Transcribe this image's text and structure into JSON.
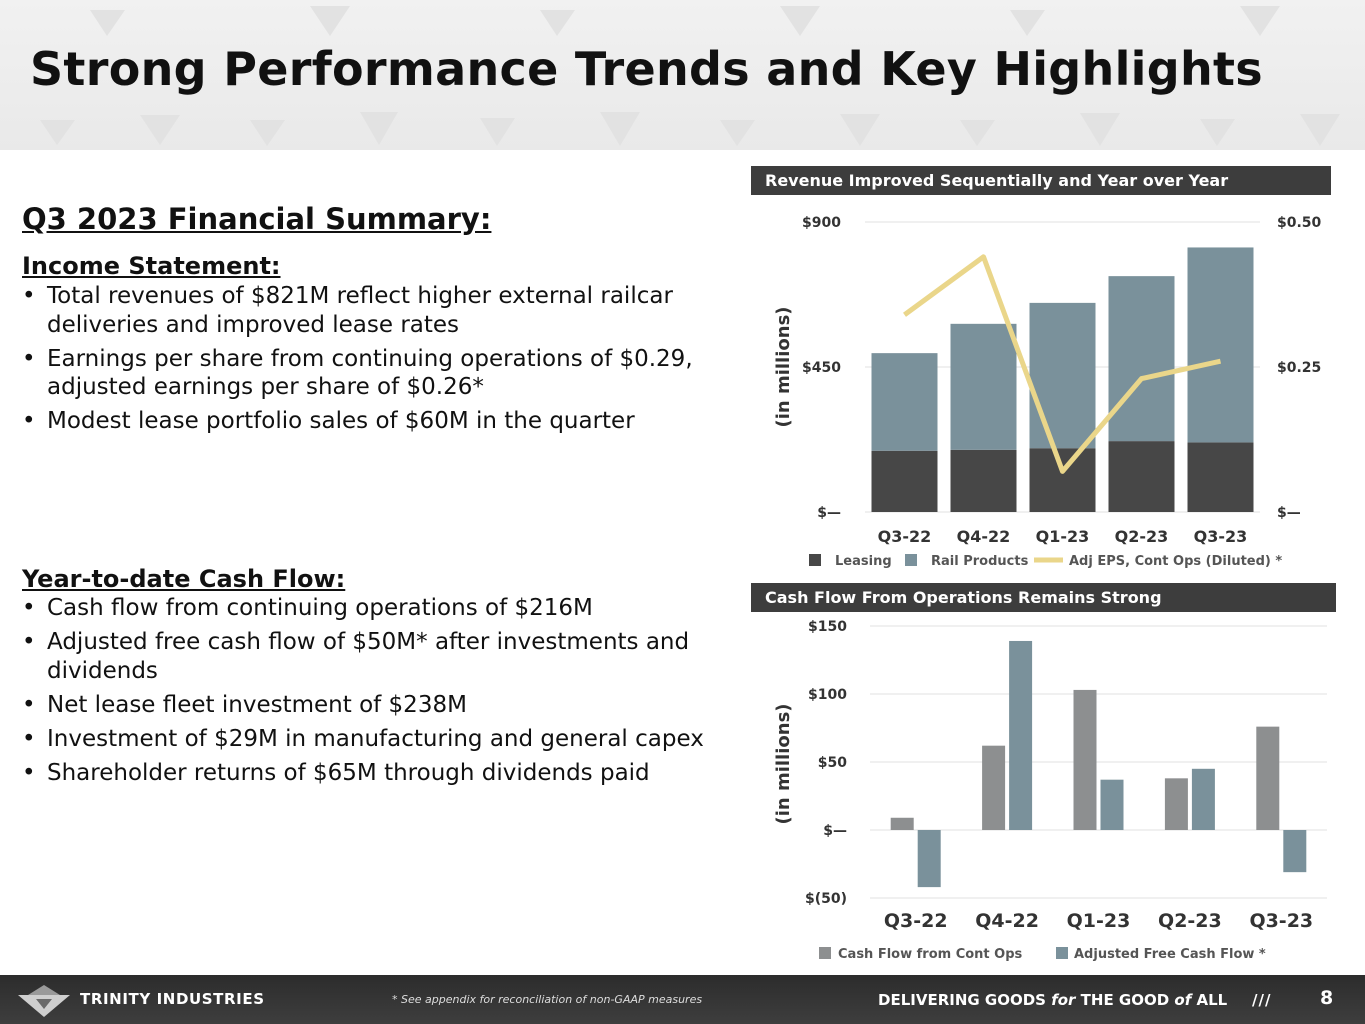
{
  "title": "Strong Performance Trends and Key Highlights",
  "summary_title": "Q3 2023 Financial Summary:",
  "income": {
    "heading": "Income Statement:",
    "bullets": [
      "Total revenues of $821M reflect higher external railcar deliveries and improved lease rates",
      "Earnings per share from continuing operations of $0.29, adjusted earnings per share of $0.26*",
      "Modest lease portfolio sales of $60M in the quarter"
    ]
  },
  "cashflow": {
    "heading": "Year-to-date Cash Flow:",
    "bullets": [
      "Cash flow from continuing operations of $216M",
      "Adjusted free cash flow of $50M* after investments and dividends",
      "Net lease fleet investment of $238M",
      "Investment of $29M in manufacturing and general capex",
      "Shareholder returns of $65M through dividends paid"
    ]
  },
  "colors": {
    "leasing": "#474747",
    "rail": "#7a919b",
    "eps_line": "#ead68a",
    "cfo": "#8d8f90",
    "afcf": "#7a919b",
    "banner": "#3d3d3d"
  },
  "chart_data": [
    {
      "type": "bar",
      "stacked": true,
      "title": "Revenue Improved Sequentially and Year over Year",
      "ylabel": "(in millions)",
      "categories": [
        "Q3-22",
        "Q4-22",
        "Q1-23",
        "Q2-23",
        "Q3-23"
      ],
      "series": [
        {
          "name": "Leasing",
          "values": [
            190,
            193,
            198,
            220,
            216
          ]
        },
        {
          "name": "Rail Products",
          "values": [
            303,
            391,
            451,
            512,
            605
          ]
        }
      ],
      "line_series": {
        "name": "Adj EPS, Cont Ops (Diluted) *",
        "axis": "right",
        "values": [
          0.34,
          0.44,
          0.07,
          0.23,
          0.26
        ]
      },
      "ylim": [
        0,
        900
      ],
      "yticks": [
        {
          "v": 0,
          "label": "$—"
        },
        {
          "v": 450,
          "label": "$450"
        },
        {
          "v": 900,
          "label": "$900"
        }
      ],
      "y2lim": [
        0,
        0.5
      ],
      "y2ticks": [
        {
          "v": 0,
          "label": "$—"
        },
        {
          "v": 0.25,
          "label": "$0.25"
        },
        {
          "v": 0.5,
          "label": "$0.50"
        }
      ],
      "legend": [
        "Leasing",
        "Rail Products",
        "Adj EPS, Cont Ops (Diluted) *"
      ]
    },
    {
      "type": "bar",
      "title": "Cash Flow From Operations Remains Strong",
      "ylabel": "(in millions)",
      "categories": [
        "Q3-22",
        "Q4-22",
        "Q1-23",
        "Q2-23",
        "Q3-23"
      ],
      "series": [
        {
          "name": "Cash Flow from Cont Ops",
          "values": [
            9,
            62,
            103,
            38,
            76
          ]
        },
        {
          "name": "Adjusted Free Cash Flow *",
          "values": [
            -42,
            139,
            37,
            45,
            -31
          ]
        }
      ],
      "ylim": [
        -50,
        150
      ],
      "yticks": [
        {
          "v": -50,
          "label": "$(50)"
        },
        {
          "v": 0,
          "label": "$—"
        },
        {
          "v": 50,
          "label": "$50"
        },
        {
          "v": 100,
          "label": "$100"
        },
        {
          "v": 150,
          "label": "$150"
        }
      ],
      "legend": [
        "Cash Flow from Cont Ops",
        "Adjusted Free Cash Flow *"
      ]
    }
  ],
  "footer": {
    "brand": "TRINITY INDUSTRIES",
    "footnote": "* See appendix for reconciliation of non-GAAP measures",
    "tagline_parts": [
      "DELIVERING GOODS ",
      "for",
      " THE GOOD ",
      "of",
      " ALL"
    ],
    "slashes": "///",
    "page": "8"
  }
}
